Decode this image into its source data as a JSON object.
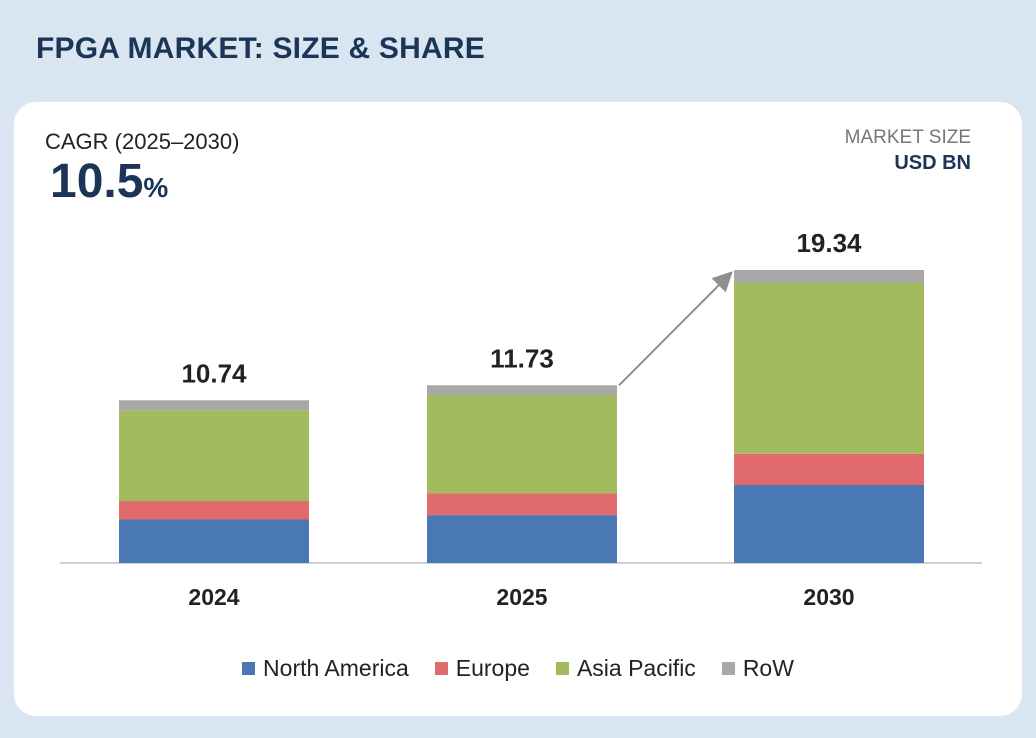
{
  "header": {
    "title": "FPGA MARKET: SIZE & SHARE"
  },
  "cagr": {
    "label": "CAGR (2025–2030)",
    "value": "10.5",
    "unit": "%"
  },
  "market_size": {
    "label": "MARKET SIZE",
    "unit": "USD BN"
  },
  "chart_data": {
    "type": "bar",
    "stacked": true,
    "title": "FPGA MARKET: SIZE & SHARE",
    "ylabel": "USD BN",
    "categories": [
      "2024",
      "2025",
      "2030"
    ],
    "totals": [
      "10.74",
      "11.73",
      "19.34"
    ],
    "series": [
      {
        "name": "North America",
        "color": "#4a78b4",
        "values": [
          2.87,
          3.16,
          5.15
        ]
      },
      {
        "name": "Europe",
        "color": "#e06a6c",
        "values": [
          1.22,
          1.43,
          2.06
        ]
      },
      {
        "name": "Asia Pacific",
        "color": "#a2bb5f",
        "values": [
          5.99,
          6.47,
          11.27
        ]
      },
      {
        "name": "RoW",
        "color": "#a8a8a8",
        "values": [
          0.66,
          0.67,
          0.86
        ]
      }
    ],
    "ylim": [
      0,
      19.34
    ],
    "annotation": "growth arrow from 2025 to 2030"
  }
}
